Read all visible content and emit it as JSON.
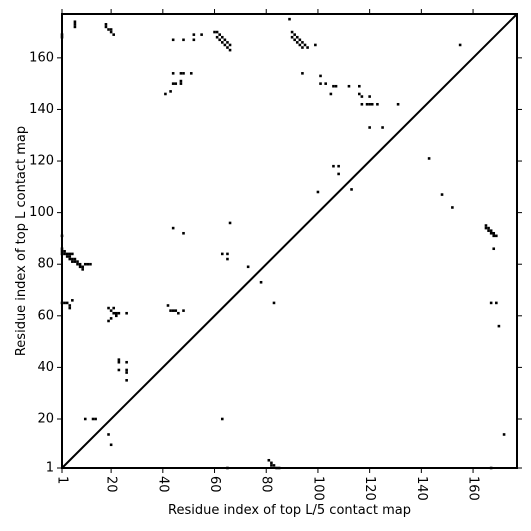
{
  "chart_data": {
    "type": "heatmap",
    "xlabel": "Residue index of top L/5 contact map",
    "ylabel": "Residue index of top L contact map",
    "xlim": [
      1,
      177
    ],
    "ylim": [
      1,
      177
    ],
    "x_ticks": [
      1,
      20,
      40,
      60,
      80,
      100,
      120,
      140,
      160
    ],
    "y_ticks": [
      1,
      20,
      40,
      60,
      80,
      100,
      120,
      140,
      160
    ],
    "diagonal": true,
    "grid": false,
    "legend": "none",
    "cell_color": "#000000",
    "upper_triangle_contacts": [
      [
        1,
        169
      ],
      [
        1,
        168
      ],
      [
        6,
        172
      ],
      [
        6,
        173
      ],
      [
        6,
        174
      ],
      [
        18,
        172
      ],
      [
        18,
        173
      ],
      [
        19,
        171
      ],
      [
        20,
        171
      ],
      [
        20,
        170
      ],
      [
        21,
        169
      ],
      [
        44,
        167
      ],
      [
        48,
        167
      ],
      [
        52,
        167
      ],
      [
        52,
        169
      ],
      [
        55,
        169
      ],
      [
        60,
        170
      ],
      [
        61,
        170
      ],
      [
        61,
        168
      ],
      [
        62,
        169
      ],
      [
        62,
        167
      ],
      [
        63,
        168
      ],
      [
        63,
        166
      ],
      [
        64,
        167
      ],
      [
        64,
        165
      ],
      [
        65,
        166
      ],
      [
        65,
        164
      ],
      [
        66,
        165
      ],
      [
        66,
        163
      ],
      [
        89,
        175
      ],
      [
        90,
        170
      ],
      [
        90,
        168
      ],
      [
        91,
        169
      ],
      [
        91,
        167
      ],
      [
        92,
        168
      ],
      [
        92,
        166
      ],
      [
        93,
        167
      ],
      [
        93,
        165
      ],
      [
        94,
        166
      ],
      [
        94,
        164
      ],
      [
        95,
        165
      ],
      [
        96,
        164
      ],
      [
        99,
        165
      ],
      [
        41,
        146
      ],
      [
        43,
        147
      ],
      [
        44,
        150
      ],
      [
        45,
        150
      ],
      [
        44,
        154
      ],
      [
        47,
        150
      ],
      [
        47,
        151
      ],
      [
        47,
        154
      ],
      [
        48,
        154
      ],
      [
        51,
        154
      ],
      [
        94,
        154
      ],
      [
        101,
        153
      ],
      [
        101,
        150
      ],
      [
        103,
        150
      ],
      [
        105,
        146
      ],
      [
        106,
        149
      ],
      [
        107,
        149
      ],
      [
        112,
        149
      ],
      [
        116,
        149
      ],
      [
        116,
        146
      ],
      [
        117,
        145
      ],
      [
        117,
        142
      ],
      [
        119,
        142
      ],
      [
        120,
        142
      ],
      [
        121,
        142
      ],
      [
        120,
        145
      ],
      [
        123,
        142
      ],
      [
        120,
        133
      ],
      [
        125,
        133
      ],
      [
        131,
        142
      ],
      [
        155,
        165
      ],
      [
        143,
        121
      ],
      [
        148,
        107
      ],
      [
        152,
        102
      ],
      [
        100,
        108
      ],
      [
        106,
        118
      ],
      [
        108,
        118
      ],
      [
        108,
        115
      ],
      [
        113,
        109
      ]
    ],
    "lower_triangle_contacts": [
      [
        1,
        86
      ],
      [
        1,
        85
      ],
      [
        1,
        84
      ],
      [
        2,
        84
      ],
      [
        2,
        85
      ],
      [
        3,
        83
      ],
      [
        3,
        84
      ],
      [
        4,
        82
      ],
      [
        4,
        83
      ],
      [
        4,
        84
      ],
      [
        5,
        81
      ],
      [
        5,
        82
      ],
      [
        5,
        84
      ],
      [
        6,
        81
      ],
      [
        6,
        82
      ],
      [
        7,
        80
      ],
      [
        7,
        81
      ],
      [
        8,
        79
      ],
      [
        8,
        80
      ],
      [
        9,
        78
      ],
      [
        9,
        79
      ],
      [
        10,
        80
      ],
      [
        11,
        80
      ],
      [
        12,
        80
      ],
      [
        1,
        91
      ],
      [
        1,
        65
      ],
      [
        2,
        65
      ],
      [
        3,
        65
      ],
      [
        4,
        64
      ],
      [
        4,
        63
      ],
      [
        5,
        66
      ],
      [
        19,
        63
      ],
      [
        19,
        58
      ],
      [
        20,
        62
      ],
      [
        21,
        61
      ],
      [
        21,
        63
      ],
      [
        22,
        60
      ],
      [
        22,
        61
      ],
      [
        23,
        61
      ],
      [
        26,
        61
      ],
      [
        20,
        59
      ],
      [
        23,
        43
      ],
      [
        23,
        42
      ],
      [
        23,
        39
      ],
      [
        26,
        42
      ],
      [
        26,
        39
      ],
      [
        26,
        38
      ],
      [
        26,
        35
      ],
      [
        43,
        62
      ],
      [
        44,
        62
      ],
      [
        45,
        62
      ],
      [
        46,
        61
      ],
      [
        48,
        62
      ],
      [
        42,
        64
      ],
      [
        44,
        94
      ],
      [
        48,
        92
      ],
      [
        66,
        96
      ],
      [
        63,
        84
      ],
      [
        65,
        84
      ],
      [
        65,
        82
      ],
      [
        73,
        79
      ],
      [
        78,
        73
      ],
      [
        83,
        65
      ],
      [
        10,
        20
      ],
      [
        13,
        20
      ],
      [
        14,
        20
      ],
      [
        19,
        14
      ],
      [
        20,
        10
      ],
      [
        63,
        20
      ],
      [
        65,
        1
      ],
      [
        81,
        4
      ],
      [
        82,
        3
      ],
      [
        82,
        2
      ],
      [
        83,
        2
      ],
      [
        84,
        1
      ],
      [
        85,
        1
      ],
      [
        165,
        95
      ],
      [
        165,
        94
      ],
      [
        166,
        94
      ],
      [
        166,
        93
      ],
      [
        167,
        93
      ],
      [
        167,
        92
      ],
      [
        168,
        92
      ],
      [
        168,
        91
      ],
      [
        169,
        91
      ],
      [
        168,
        86
      ],
      [
        167,
        65
      ],
      [
        169,
        65
      ],
      [
        170,
        56
      ],
      [
        172,
        14
      ],
      [
        167,
        1
      ]
    ]
  }
}
